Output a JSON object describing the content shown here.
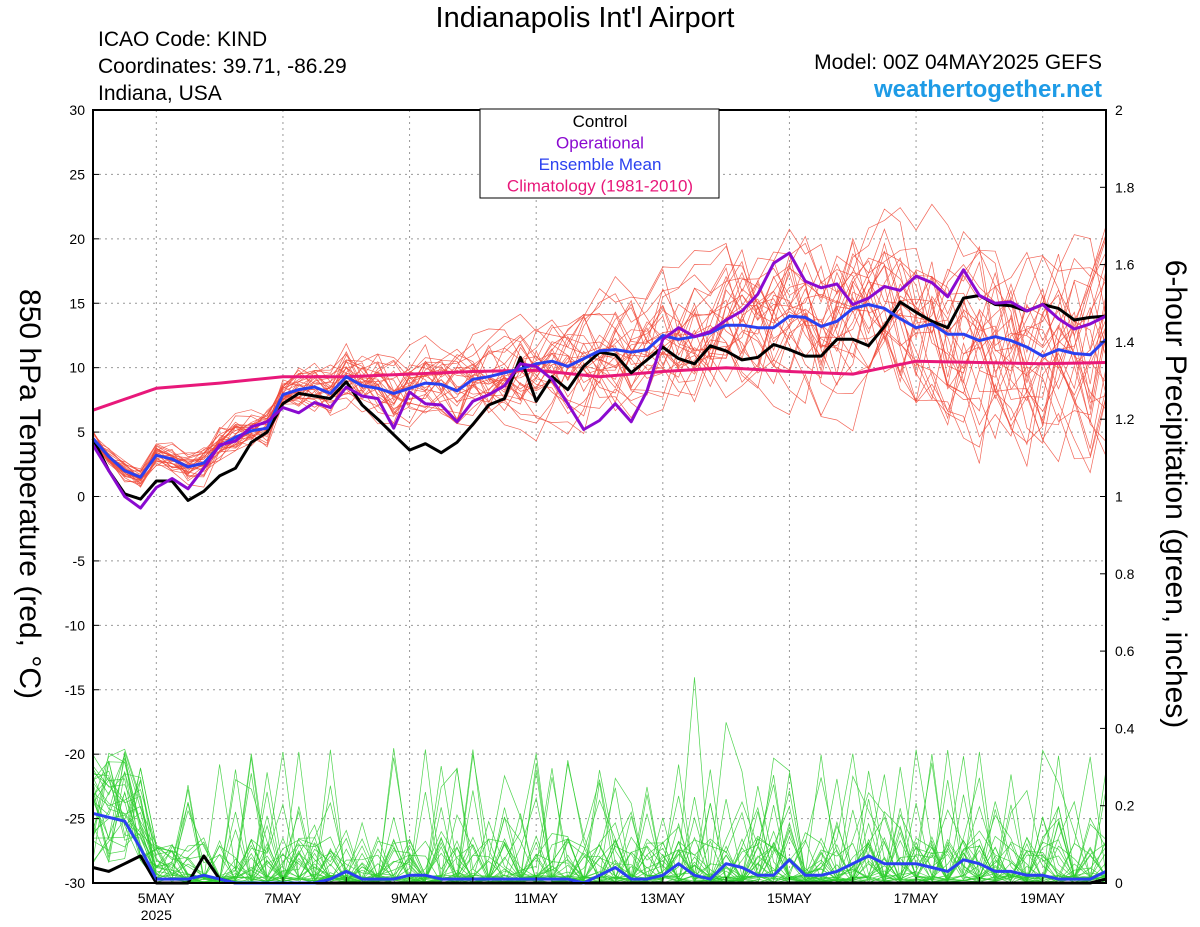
{
  "header": {
    "title": "Indianapolis Int'l Airport",
    "icao": "ICAO Code: KIND",
    "coords": "Coordinates: 39.71, -86.29",
    "location": "Indiana, USA",
    "model": "Model: 00Z 04MAY2025 GEFS",
    "site": "weathertogether.net"
  },
  "chart_data": {
    "type": "line",
    "ylabel": "850 hPa Temperature (red, °C)",
    "y2label": "6-hour Precipitation (green, inches)",
    "ylim": [
      -30,
      30
    ],
    "y2lim": [
      0,
      2
    ],
    "yticks": [
      30,
      25,
      20,
      15,
      10,
      5,
      0,
      -5,
      -10,
      -15,
      -20,
      -25,
      -30
    ],
    "y2ticks": [
      2,
      1.8,
      1.6,
      1.4,
      1.2,
      1,
      0.8,
      0.6,
      0.4,
      0.2,
      0
    ],
    "xlim_days": [
      4.0,
      20.0
    ],
    "xticks": [
      {
        "day": 5,
        "label": "5MAY",
        "sub": "2025"
      },
      {
        "day": 7,
        "label": "7MAY",
        "sub": ""
      },
      {
        "day": 9,
        "label": "9MAY",
        "sub": ""
      },
      {
        "day": 11,
        "label": "11MAY",
        "sub": ""
      },
      {
        "day": 13,
        "label": "13MAY",
        "sub": ""
      },
      {
        "day": 15,
        "label": "15MAY",
        "sub": ""
      },
      {
        "day": 17,
        "label": "17MAY",
        "sub": ""
      },
      {
        "day": 19,
        "label": "19MAY",
        "sub": ""
      }
    ],
    "grid": true,
    "legend_position": "top-center",
    "legend": [
      {
        "name": "Control",
        "color": "#000000"
      },
      {
        "name": "Operational",
        "color": "#8a0ad0"
      },
      {
        "name": "Ensemble Mean",
        "color": "#2a40f0"
      },
      {
        "name": "Climatology (1981-2010)",
        "color": "#e8187a"
      }
    ],
    "series": [
      {
        "name": "Control",
        "axis": "temp",
        "color": "#000000",
        "x": [
          4.0,
          4.25,
          4.5,
          4.75,
          5.0,
          5.25,
          5.5,
          5.75,
          6.0,
          6.25,
          6.5,
          6.75,
          7.0,
          7.25,
          7.5,
          7.75,
          8.0,
          8.25,
          8.5,
          8.75,
          9.0,
          9.25,
          9.5,
          9.75,
          10.0,
          10.25,
          10.5,
          10.75,
          11.0,
          11.25,
          11.5,
          11.75,
          12.0,
          12.25,
          12.5,
          12.75,
          13.0,
          13.25,
          13.5,
          13.75,
          14.0,
          14.25,
          14.5,
          14.75,
          15.0,
          15.25,
          15.5,
          15.75,
          16.0,
          16.25,
          16.5,
          16.75,
          17.0,
          17.25,
          17.5,
          17.75,
          18.0,
          18.25,
          18.5,
          18.75,
          19.0,
          19.25,
          19.5,
          19.75,
          20.0
        ],
        "y": [
          4.5,
          2.0,
          0.2,
          -0.2,
          1.2,
          1.2,
          -0.3,
          0.4,
          1.6,
          2.2,
          4.2,
          5.0,
          7.2,
          8.0,
          7.8,
          7.6,
          8.9,
          7.1,
          6.0,
          4.8,
          3.6,
          4.1,
          3.4,
          4.2,
          5.6,
          7.1,
          7.6,
          10.8,
          7.4,
          9.3,
          8.3,
          10.1,
          11.2,
          11.0,
          9.6,
          10.6,
          11.6,
          10.7,
          10.3,
          11.7,
          11.3,
          10.6,
          10.8,
          11.8,
          11.4,
          10.9,
          10.9,
          12.2,
          12.2,
          11.7,
          13.2,
          15.1,
          14.3,
          13.6,
          13.1,
          15.4,
          15.6,
          14.9,
          14.8,
          14.4,
          14.9,
          14.6,
          13.7,
          13.9,
          14.0
        ]
      },
      {
        "name": "Operational",
        "axis": "temp",
        "color": "#8a0ad0",
        "x": [
          4.0,
          4.25,
          4.5,
          4.75,
          5.0,
          5.25,
          5.5,
          5.75,
          6.0,
          6.25,
          6.5,
          6.75,
          7.0,
          7.25,
          7.5,
          7.75,
          8.0,
          8.25,
          8.5,
          8.75,
          9.0,
          9.25,
          9.5,
          9.75,
          10.0,
          10.25,
          10.5,
          10.75,
          11.0,
          11.25,
          11.5,
          11.75,
          12.0,
          12.25,
          12.5,
          12.75,
          13.0,
          13.25,
          13.5,
          13.75,
          14.0,
          14.25,
          14.5,
          14.75,
          15.0,
          15.25,
          15.5,
          15.75,
          16.0,
          16.25,
          16.5,
          16.75,
          17.0,
          17.25,
          17.5,
          17.75,
          18.0,
          18.25,
          18.5,
          18.75,
          19.0,
          19.25,
          19.5,
          19.75,
          20.0
        ],
        "y": [
          4.0,
          2.0,
          0.0,
          -0.9,
          0.7,
          1.4,
          0.6,
          2.2,
          4.0,
          4.3,
          5.4,
          5.8,
          6.9,
          6.5,
          7.3,
          6.9,
          8.5,
          7.8,
          7.6,
          5.3,
          8.1,
          7.2,
          7.1,
          5.8,
          7.4,
          7.9,
          8.6,
          10.3,
          10.1,
          9.1,
          7.2,
          5.2,
          5.9,
          7.2,
          5.8,
          8.2,
          12.2,
          13.1,
          12.4,
          12.8,
          13.7,
          14.4,
          15.7,
          18.1,
          18.9,
          16.7,
          16.2,
          16.5,
          14.9,
          15.4,
          16.3,
          16.0,
          17.1,
          16.6,
          15.5,
          17.6,
          15.6,
          15.0,
          15.1,
          14.4,
          14.9,
          13.8,
          13.0,
          13.4,
          14.0
        ]
      },
      {
        "name": "Ensemble Mean",
        "axis": "temp",
        "color": "#2a40f0",
        "x": [
          4.0,
          4.25,
          4.5,
          4.75,
          5.0,
          5.25,
          5.5,
          5.75,
          6.0,
          6.25,
          6.5,
          6.75,
          7.0,
          7.25,
          7.5,
          7.75,
          8.0,
          8.25,
          8.5,
          8.75,
          9.0,
          9.25,
          9.5,
          9.75,
          10.0,
          10.25,
          10.5,
          10.75,
          11.0,
          11.25,
          11.5,
          11.75,
          12.0,
          12.25,
          12.5,
          12.75,
          13.0,
          13.25,
          13.5,
          13.75,
          14.0,
          14.25,
          14.5,
          14.75,
          15.0,
          15.25,
          15.5,
          15.75,
          16.0,
          16.25,
          16.5,
          16.75,
          17.0,
          17.25,
          17.5,
          17.75,
          18.0,
          18.25,
          18.5,
          18.75,
          19.0,
          19.25,
          19.5,
          19.75,
          20.0
        ],
        "y": [
          4.5,
          3.1,
          2.0,
          1.5,
          3.2,
          2.9,
          2.3,
          2.6,
          3.9,
          4.6,
          5.1,
          5.3,
          7.9,
          8.3,
          8.5,
          8.0,
          9.3,
          8.6,
          8.4,
          8.0,
          8.4,
          8.8,
          8.7,
          8.2,
          9.1,
          9.3,
          9.6,
          9.9,
          10.3,
          10.5,
          10.1,
          10.7,
          11.3,
          11.4,
          11.2,
          11.4,
          12.5,
          12.2,
          12.4,
          12.7,
          13.3,
          13.3,
          13.1,
          13.1,
          14.0,
          13.9,
          13.2,
          13.6,
          14.6,
          14.9,
          14.6,
          13.8,
          13.1,
          13.4,
          12.6,
          12.6,
          12.1,
          12.4,
          12.1,
          11.6,
          10.9,
          11.4,
          11.1,
          11.0,
          12.2
        ]
      },
      {
        "name": "Climatology (1981-2010)",
        "axis": "temp",
        "color": "#e8187a",
        "x": [
          4.0,
          5.0,
          6.0,
          7.0,
          8.0,
          9.0,
          10.0,
          11.0,
          12.0,
          13.0,
          14.0,
          15.0,
          16.0,
          17.0,
          18.0,
          19.0,
          20.0
        ],
        "y": [
          6.7,
          8.4,
          8.8,
          9.3,
          9.3,
          9.5,
          9.7,
          9.8,
          9.3,
          9.7,
          10.0,
          9.7,
          9.5,
          10.5,
          10.4,
          10.3,
          10.4
        ]
      },
      {
        "name": "Ensemble Mean Precipitation",
        "axis": "precip",
        "color": "#2a40f0",
        "x": [
          4.0,
          4.25,
          4.5,
          4.75,
          5.0,
          5.25,
          5.5,
          5.75,
          6.0,
          6.25,
          6.5,
          6.75,
          7.0,
          7.25,
          7.5,
          7.75,
          8.0,
          8.25,
          8.5,
          8.75,
          9.0,
          9.25,
          9.5,
          9.75,
          10.0,
          10.25,
          10.5,
          10.75,
          11.0,
          11.25,
          11.5,
          11.75,
          12.0,
          12.25,
          12.5,
          12.75,
          13.0,
          13.25,
          13.5,
          13.75,
          14.0,
          14.25,
          14.5,
          14.75,
          15.0,
          15.25,
          15.5,
          15.75,
          16.0,
          16.25,
          16.5,
          16.75,
          17.0,
          17.25,
          17.5,
          17.75,
          18.0,
          18.25,
          18.5,
          18.75,
          19.0,
          19.25,
          19.5,
          19.75,
          20.0
        ],
        "y": [
          0.18,
          0.17,
          0.16,
          0.09,
          0.01,
          0.01,
          0.01,
          0.02,
          0.01,
          0.0,
          0.0,
          0.0,
          0.0,
          0.0,
          0.0,
          0.01,
          0.03,
          0.01,
          0.01,
          0.01,
          0.02,
          0.02,
          0.01,
          0.01,
          0.01,
          0.01,
          0.01,
          0.01,
          0.01,
          0.01,
          0.01,
          0.0,
          0.02,
          0.04,
          0.01,
          0.01,
          0.02,
          0.05,
          0.02,
          0.01,
          0.05,
          0.04,
          0.02,
          0.02,
          0.06,
          0.02,
          0.02,
          0.03,
          0.05,
          0.07,
          0.05,
          0.05,
          0.05,
          0.04,
          0.03,
          0.06,
          0.05,
          0.03,
          0.03,
          0.02,
          0.02,
          0.01,
          0.01,
          0.01,
          0.03
        ]
      },
      {
        "name": "Control Precipitation",
        "axis": "precip",
        "color": "#000000",
        "x": [
          4.0,
          4.25,
          4.5,
          4.75,
          5.0,
          5.25,
          5.5,
          5.75,
          6.0,
          6.25,
          6.5,
          6.75,
          7.0,
          7.25,
          7.5,
          7.75,
          8.0,
          8.25,
          8.5,
          8.75,
          9.0,
          9.25,
          9.5,
          9.75,
          10.0,
          10.25,
          10.5,
          10.75,
          11.0,
          11.25,
          11.5,
          11.75,
          12.0,
          12.25,
          12.5,
          12.75,
          13.0,
          13.25,
          13.5,
          13.75,
          14.0,
          14.25,
          14.5,
          14.75,
          15.0,
          15.25,
          15.5,
          15.75,
          16.0,
          16.25,
          16.5,
          16.75,
          17.0,
          17.25,
          17.5,
          17.75,
          18.0,
          18.25,
          18.5,
          18.75,
          19.0,
          19.25,
          19.5,
          19.75,
          20.0
        ],
        "y": [
          0.04,
          0.03,
          0.05,
          0.07,
          0.0,
          0.0,
          0.0,
          0.07,
          0.01,
          0.0,
          0.0,
          0.0,
          0.0,
          0.0,
          0.0,
          0.0,
          0.0,
          0.0,
          0.0,
          0.0,
          0.0,
          0.0,
          0.0,
          0.0,
          0.0,
          0.0,
          0.0,
          0.0,
          0.0,
          0.0,
          0.0,
          0.0,
          0.0,
          0.0,
          0.0,
          0.0,
          0.0,
          0.0,
          0.0,
          0.0,
          0.0,
          0.0,
          0.0,
          0.0,
          0.0,
          0.0,
          0.0,
          0.0,
          0.0,
          0.0,
          0.0,
          0.0,
          0.0,
          0.0,
          0.0,
          0.0,
          0.0,
          0.0,
          0.0,
          0.0,
          0.0,
          0.0,
          0.0,
          0.0,
          0.01
        ]
      }
    ]
  }
}
